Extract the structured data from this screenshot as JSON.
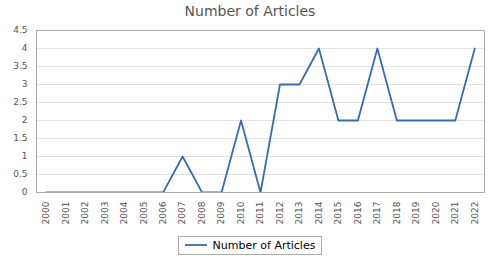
{
  "chart_data": {
    "type": "line",
    "title": "Number of Articles",
    "x": [
      2000,
      2001,
      2002,
      2003,
      2004,
      2005,
      2006,
      2007,
      2008,
      2009,
      2010,
      2011,
      2012,
      2013,
      2014,
      2015,
      2016,
      2017,
      2018,
      2019,
      2020,
      2021,
      2022
    ],
    "series": [
      {
        "name": "Number of Articles",
        "color": "#3A6BAD",
        "values": [
          0,
          0,
          0,
          0,
          0,
          0,
          0,
          1,
          0,
          0,
          2,
          0,
          3,
          3,
          4,
          2,
          2,
          4,
          2,
          2,
          2,
          2,
          4
        ]
      }
    ],
    "xlim": [
      1999.5,
      2022.5
    ],
    "xticks": [
      2000,
      2001,
      2002,
      2003,
      2004,
      2005,
      2006,
      2007,
      2008,
      2009,
      2010,
      2011,
      2012,
      2013,
      2014,
      2015,
      2016,
      2017,
      2018,
      2019,
      2020,
      2021,
      2022
    ],
    "ylim": [
      0,
      4.5
    ],
    "yticks": [
      0,
      0.5,
      1,
      1.5,
      2,
      2.5,
      3,
      3.5,
      4,
      4.5
    ],
    "grid": "y",
    "legend": "bottom"
  }
}
